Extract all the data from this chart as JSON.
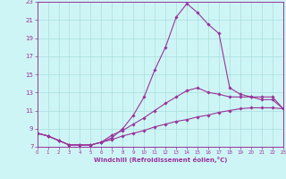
{
  "xlabel": "Windchill (Refroidissement éolien,°C)",
  "bg_color": "#cef5f5",
  "grid_color": "#aadddd",
  "line_color": "#993399",
  "xlim": [
    0,
    23
  ],
  "ylim": [
    7,
    23
  ],
  "yticks": [
    7,
    9,
    11,
    13,
    15,
    17,
    19,
    21,
    23
  ],
  "xticks": [
    0,
    1,
    2,
    3,
    4,
    5,
    6,
    7,
    8,
    9,
    10,
    11,
    12,
    13,
    14,
    15,
    16,
    17,
    18,
    19,
    20,
    21,
    22,
    23
  ],
  "hours": [
    0,
    1,
    2,
    3,
    4,
    5,
    6,
    7,
    8,
    9,
    10,
    11,
    12,
    13,
    14,
    15,
    16,
    17,
    18,
    19,
    20,
    21,
    22,
    23
  ],
  "line_main": [
    8.5,
    8.2,
    7.7,
    7.2,
    7.2,
    7.2,
    7.5,
    8.0,
    9.0,
    10.5,
    12.5,
    15.5,
    18.0,
    21.3,
    22.8,
    21.8,
    20.5,
    19.5,
    13.5,
    12.8,
    12.5,
    12.2,
    12.2,
    11.2
  ],
  "line_mid": [
    8.5,
    8.2,
    7.7,
    7.2,
    7.2,
    7.2,
    7.5,
    8.3,
    8.8,
    9.5,
    10.2,
    11.0,
    11.8,
    12.5,
    13.2,
    13.5,
    13.0,
    12.8,
    12.5,
    12.5,
    12.5,
    12.5,
    12.5,
    11.2
  ],
  "line_low": [
    8.5,
    8.2,
    7.7,
    7.2,
    7.2,
    7.2,
    7.5,
    7.8,
    8.2,
    8.5,
    8.8,
    9.2,
    9.5,
    9.8,
    10.0,
    10.3,
    10.5,
    10.8,
    11.0,
    11.2,
    11.3,
    11.3,
    11.3,
    11.2
  ]
}
